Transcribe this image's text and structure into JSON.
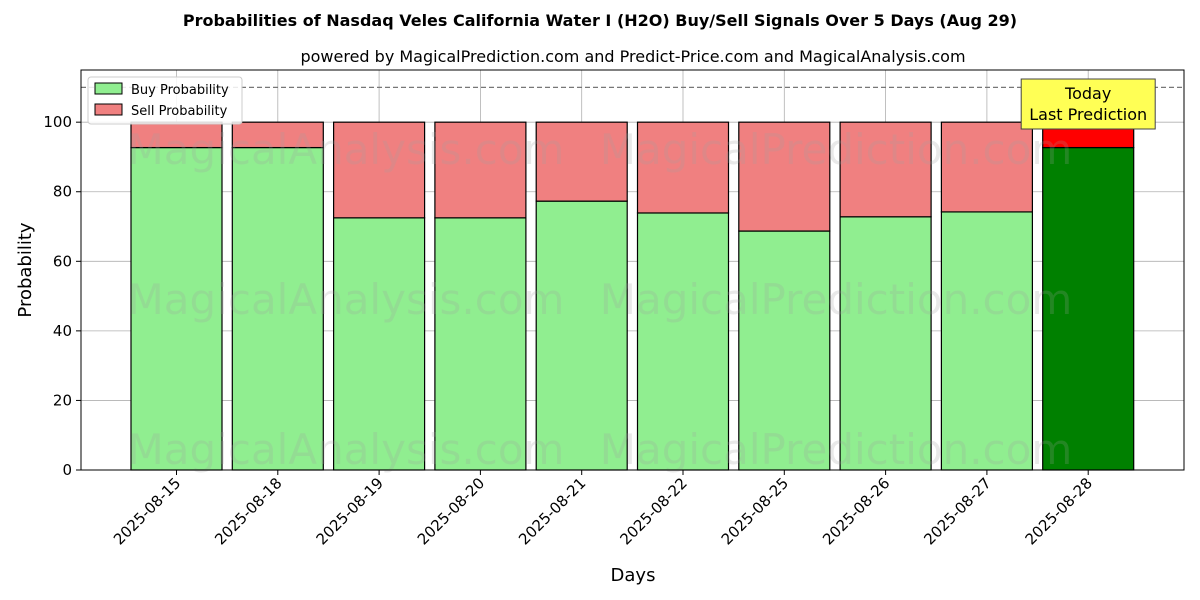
{
  "chart_data": {
    "type": "bar",
    "stacked": true,
    "title": "Probabilities of Nasdaq Veles California Water I (H2O) Buy/Sell Signals Over 5 Days (Aug 29)",
    "subtitle": "powered by MagicalPrediction.com and Predict-Price.com and MagicalAnalysis.com",
    "xlabel": "Days",
    "ylabel": "Probability",
    "ylim": [
      0,
      115
    ],
    "yticks": [
      0,
      20,
      40,
      60,
      80,
      100
    ],
    "grid": true,
    "legend_position": "top-left",
    "reference_line": 110,
    "categories": [
      "2025-08-15",
      "2025-08-18",
      "2025-08-19",
      "2025-08-20",
      "2025-08-21",
      "2025-08-22",
      "2025-08-25",
      "2025-08-26",
      "2025-08-27",
      "2025-08-28"
    ],
    "series": [
      {
        "name": "Buy Probability",
        "values": [
          92.7,
          92.7,
          72.5,
          72.5,
          77.3,
          73.9,
          68.7,
          72.8,
          74.2,
          92.7
        ]
      },
      {
        "name": "Sell Probability",
        "values": [
          7.3,
          7.3,
          27.5,
          27.5,
          22.7,
          26.1,
          31.3,
          27.2,
          25.8,
          7.3
        ]
      }
    ],
    "colors": {
      "buy": "#90ee90",
      "sell": "#f08080",
      "buy_highlight": "#008000",
      "sell_highlight": "#ff0000",
      "annotation_bg": "#ffff55"
    },
    "annotation": {
      "lines": [
        "Today",
        "Last Prediction"
      ],
      "target_index": 9
    },
    "watermarks": [
      "MagicalAnalysis.com",
      "MagicalPrediction.com"
    ]
  }
}
